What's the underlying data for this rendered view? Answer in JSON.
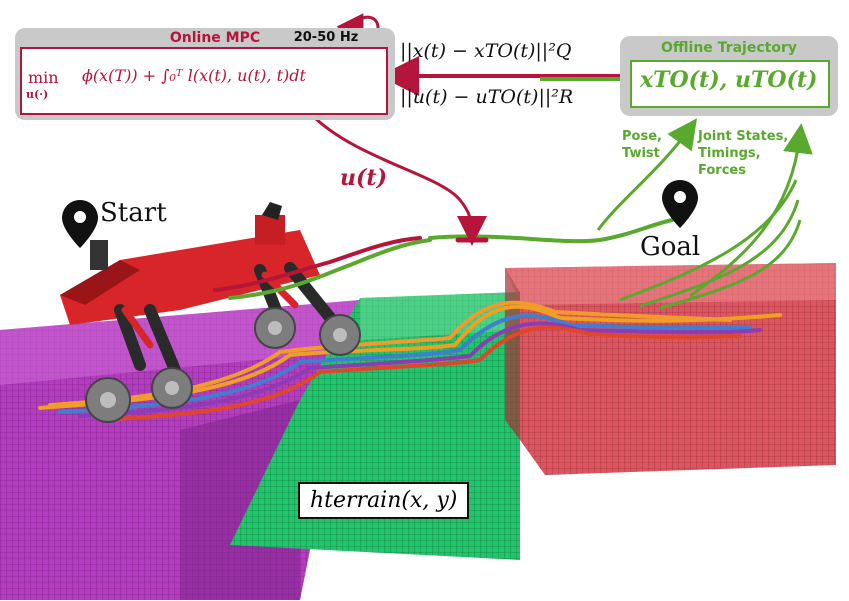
{
  "mpc": {
    "title": "Online MPC",
    "rate": "20-50 Hz",
    "formula_min": "min",
    "formula_min_sub": "u(·)",
    "formula": "ϕ(x(T)) + ∫₀ᵀ l(x(t), u(t), t)dt"
  },
  "offline": {
    "title": "Offline Trajectory",
    "formula": "xTO(t), uTO(t)"
  },
  "cost": {
    "state_term": "||x(t) − xTO(t)||²Q",
    "input_term": "||u(t) − uTO(t)||²R"
  },
  "control_label": "u(t)",
  "labels": {
    "pose_twist_1": "Pose,",
    "pose_twist_2": "Twist",
    "joint_1": "Joint States,",
    "joint_2": "Timings,",
    "joint_3": "Forces"
  },
  "start_label": "Start",
  "goal_label": "Goal",
  "terrain_label": "hterrain(x, y)",
  "colors": {
    "mpc_red": "#b5153a",
    "offline_green": "#5aa92f",
    "terrain_magenta": "#b43cc0",
    "terrain_green": "#1fc06a",
    "terrain_red": "#d9505a"
  }
}
